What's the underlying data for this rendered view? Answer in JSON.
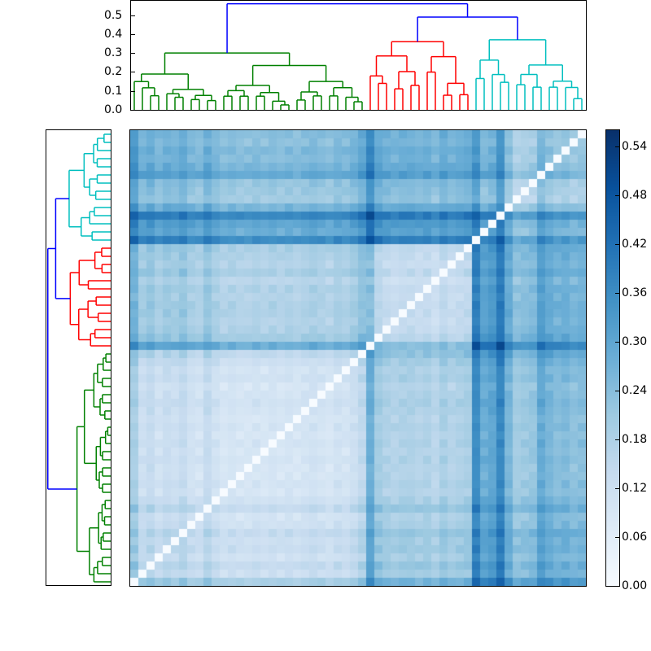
{
  "chart_data": {
    "type": "heatmap",
    "title": "",
    "description": "Clustered distance matrix with top (column) and left (row) dendrograms and a colorbar",
    "colormap": "Blues",
    "vmin": 0.0,
    "vmax": 0.56,
    "n_leaves": 56,
    "colorbar": {
      "ticks": [
        "0.00",
        "0.06",
        "0.12",
        "0.18",
        "0.24",
        "0.30",
        "0.36",
        "0.42",
        "0.48",
        "0.54"
      ],
      "tick_values": [
        0.0,
        0.06,
        0.12,
        0.18,
        0.24,
        0.3,
        0.36,
        0.42,
        0.48,
        0.54
      ]
    },
    "top_dendrogram": {
      "yticks": [
        "0.0",
        "0.1",
        "0.2",
        "0.3",
        "0.4",
        "0.5"
      ],
      "ytick_values": [
        0.0,
        0.1,
        0.2,
        0.3,
        0.4,
        0.5
      ],
      "ylim": [
        0.0,
        0.58
      ],
      "root_height": 0.56,
      "clusters": [
        {
          "name": "green",
          "color": "#008000",
          "leaves": 29,
          "merge_height": 0.3
        },
        {
          "name": "red",
          "color": "#ff0000",
          "leaves": 13,
          "merge_height": 0.36
        },
        {
          "name": "cyan",
          "color": "#00bfbf",
          "leaves": 14,
          "merge_height": 0.37
        }
      ],
      "link_color_above_threshold": "#0000ff",
      "red_cyan_merge_height": 0.49
    },
    "left_dendrogram": {
      "orientation": "left",
      "order_top_to_bottom": [
        "cyan",
        "red",
        "green"
      ]
    },
    "leaf_cluster": [
      "g",
      "g",
      "g",
      "g",
      "g",
      "g",
      "g",
      "g",
      "g",
      "g",
      "g",
      "g",
      "g",
      "g",
      "g",
      "g",
      "g",
      "g",
      "g",
      "g",
      "g",
      "g",
      "g",
      "g",
      "g",
      "g",
      "g",
      "g",
      "g",
      "r",
      "r",
      "r",
      "r",
      "r",
      "r",
      "r",
      "r",
      "r",
      "r",
      "r",
      "r",
      "r",
      "c",
      "c",
      "c",
      "c",
      "c",
      "c",
      "c",
      "c",
      "c",
      "c",
      "c",
      "c",
      "c",
      "c"
    ],
    "leaf_offset": [
      0.1,
      0.03,
      0.05,
      0.02,
      0.04,
      0.03,
      0.05,
      0.02,
      0.01,
      0.05,
      0.02,
      0.0,
      0.01,
      0.0,
      0.0,
      0.01,
      0.0,
      0.01,
      0.0,
      0.01,
      0.0,
      0.01,
      0.02,
      0.01,
      0.0,
      0.02,
      0.01,
      0.03,
      0.06,
      0.12,
      0.04,
      0.02,
      0.01,
      0.02,
      0.02,
      0.01,
      0.02,
      0.0,
      0.03,
      0.01,
      0.02,
      0.03,
      0.16,
      0.08,
      0.1,
      0.17,
      0.06,
      0.0,
      0.01,
      0.02,
      0.09,
      0.06,
      0.04,
      0.05,
      0.03,
      0.04
    ],
    "base_distance": {
      "gg": 0.07,
      "rr": 0.09,
      "cc": 0.12,
      "gr": 0.14,
      "gc": 0.18,
      "rc": 0.2
    },
    "rows_order": "reversed leaf order (diagonal runs bottom-left to top-right)"
  },
  "colors": {
    "green": "#008000",
    "red": "#ff0000",
    "cyan": "#00bfbf",
    "blue": "#0000ff"
  }
}
